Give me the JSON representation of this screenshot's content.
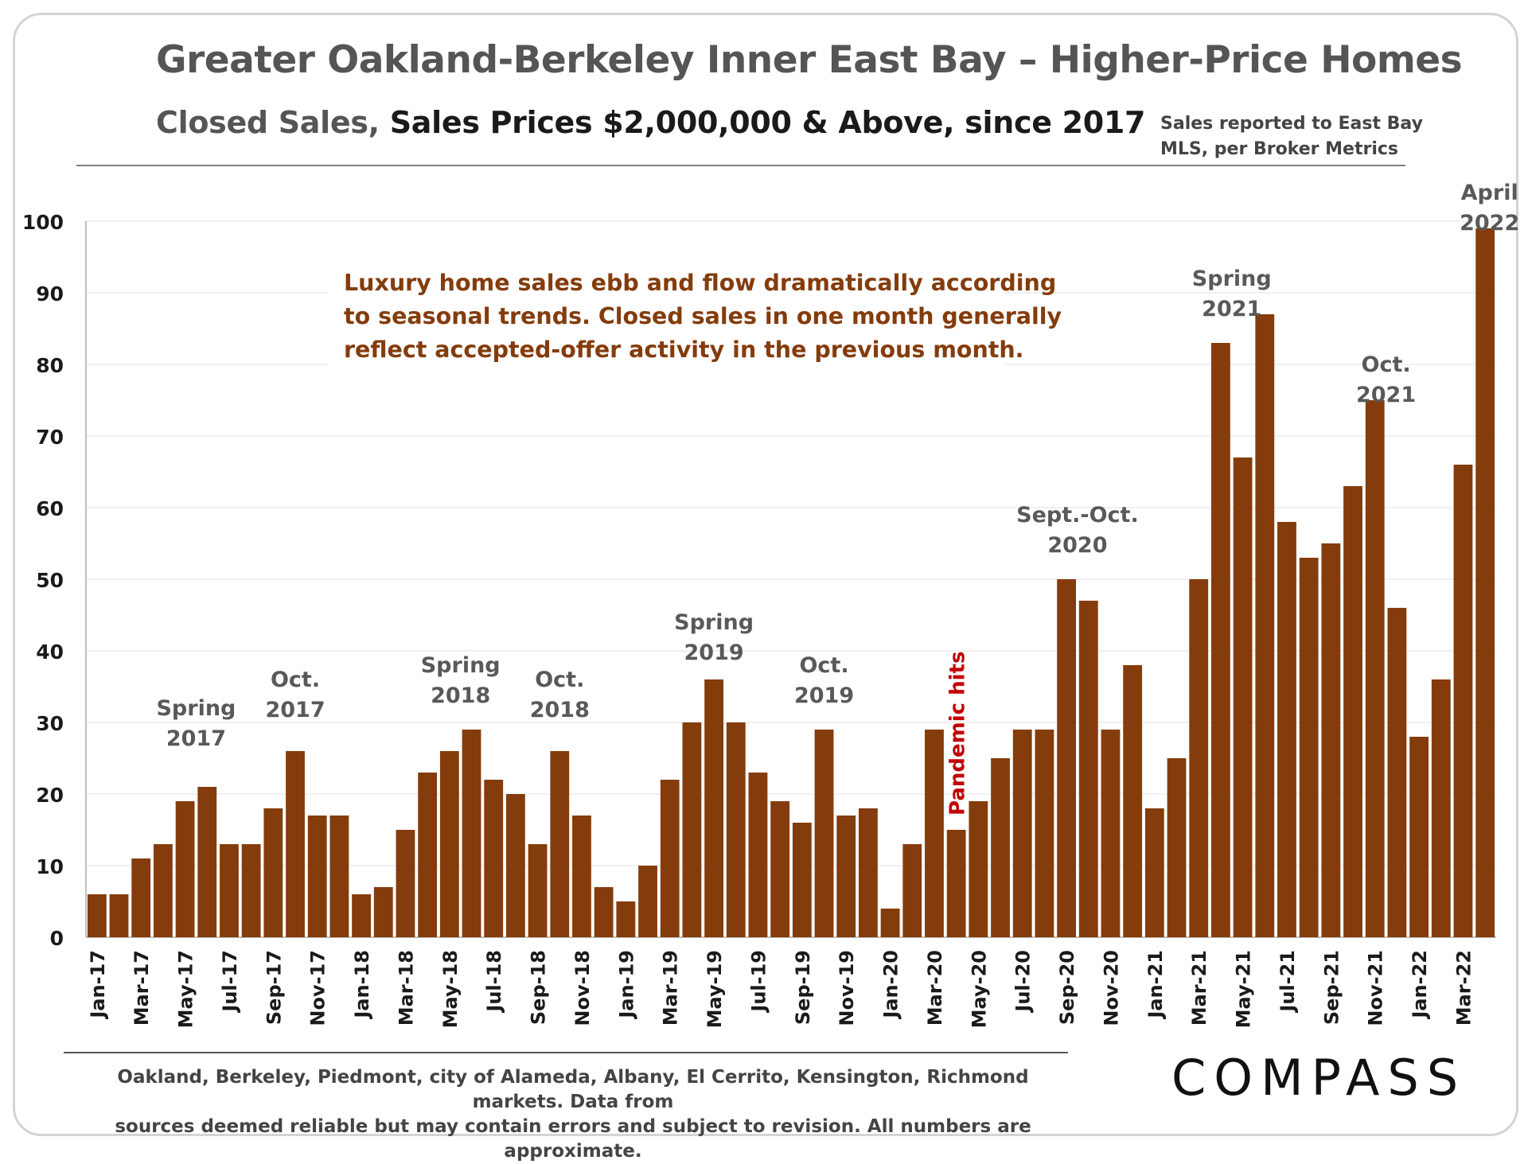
{
  "header": {
    "title": "Greater Oakland-Berkeley Inner East Bay – Higher-Price Homes",
    "subtitle_prefix": "Closed Sales,",
    "subtitle_rest": " Sales Prices $2,000,000 & Above, since 2017",
    "source_line1": "Sales reported to East Bay",
    "source_line2": "MLS, per Broker Metrics"
  },
  "footer": {
    "note_line1": "Oakland, Berkeley, Piedmont, city of Alameda, Albany, El Cerrito, Kensington, Richmond markets. Data from",
    "note_line2": "sources deemed reliable but may contain errors and subject to revision. All numbers are approximate.",
    "logo": "COMPASS"
  },
  "colors": {
    "bar": "#843C0C",
    "annotation": "#595959",
    "callout": "#843C0C",
    "pandemic": "#C00000",
    "grid": "#ececec"
  },
  "chart_data": {
    "type": "bar",
    "title": "Greater Oakland-Berkeley Inner East Bay – Higher-Price Homes",
    "ylim": [
      0,
      100
    ],
    "yticks": [
      0,
      10,
      20,
      30,
      40,
      50,
      60,
      70,
      80,
      90,
      100
    ],
    "grid": true,
    "categories": [
      "Jan-17",
      "Feb-17",
      "Mar-17",
      "Apr-17",
      "May-17",
      "Jun-17",
      "Jul-17",
      "Aug-17",
      "Sep-17",
      "Oct-17",
      "Nov-17",
      "Dec-17",
      "Jan-18",
      "Feb-18",
      "Mar-18",
      "Apr-18",
      "May-18",
      "Jun-18",
      "Jul-18",
      "Aug-18",
      "Sep-18",
      "Oct-18",
      "Nov-18",
      "Dec-18",
      "Jan-19",
      "Feb-19",
      "Mar-19",
      "Apr-19",
      "May-19",
      "Jun-19",
      "Jul-19",
      "Aug-19",
      "Sep-19",
      "Oct-19",
      "Nov-19",
      "Dec-19",
      "Jan-20",
      "Feb-20",
      "Mar-20",
      "Apr-20",
      "May-20",
      "Jun-20",
      "Jul-20",
      "Aug-20",
      "Sep-20",
      "Oct-20",
      "Nov-20",
      "Dec-20",
      "Jan-21",
      "Feb-21",
      "Mar-21",
      "Apr-21",
      "May-21",
      "Jun-21",
      "Jul-21",
      "Aug-21",
      "Sep-21",
      "Oct-21",
      "Nov-21",
      "Dec-21",
      "Jan-22",
      "Feb-22",
      "Mar-22",
      "Apr-22"
    ],
    "xtick_labels": [
      "Jan-17",
      "Mar-17",
      "May-17",
      "Jul-17",
      "Sep-17",
      "Nov-17",
      "Jan-18",
      "Mar-18",
      "May-18",
      "Jul-18",
      "Sep-18",
      "Nov-18",
      "Jan-19",
      "Mar-19",
      "May-19",
      "Jul-19",
      "Sep-19",
      "Nov-19",
      "Jan-20",
      "Mar-20",
      "May-20",
      "Jul-20",
      "Sep-20",
      "Nov-20",
      "Jan-21",
      "Mar-21",
      "May-21",
      "Jul-21",
      "Sep-21",
      "Nov-21",
      "Jan-22",
      "Mar-22"
    ],
    "values": [
      6,
      6,
      11,
      13,
      19,
      21,
      13,
      13,
      18,
      26,
      17,
      17,
      6,
      7,
      15,
      23,
      26,
      29,
      22,
      20,
      13,
      26,
      17,
      7,
      5,
      10,
      22,
      30,
      36,
      30,
      23,
      19,
      16,
      29,
      17,
      18,
      4,
      13,
      29,
      15,
      19,
      25,
      29,
      29,
      50,
      47,
      29,
      38,
      18,
      25,
      50,
      83,
      67,
      87,
      58,
      53,
      55,
      63,
      75,
      46,
      28,
      36,
      66,
      99
    ],
    "annotations": [
      {
        "index": 4.5,
        "lines": [
          "Spring",
          "2017"
        ],
        "value": 31
      },
      {
        "index": 9,
        "lines": [
          "Oct.",
          "2017"
        ],
        "value": 35
      },
      {
        "index": 16.5,
        "lines": [
          "Spring",
          "2018"
        ],
        "value": 37
      },
      {
        "index": 21,
        "lines": [
          "Oct.",
          "2018"
        ],
        "value": 35
      },
      {
        "index": 28,
        "lines": [
          "Spring",
          "2019"
        ],
        "value": 43
      },
      {
        "index": 33,
        "lines": [
          "Oct.",
          "2019"
        ],
        "value": 37
      },
      {
        "index": 44.5,
        "lines": [
          "Sept.-Oct.",
          "2020"
        ],
        "value": 58
      },
      {
        "index": 51.5,
        "lines": [
          "Spring",
          "2021"
        ],
        "value": 91
      },
      {
        "index": 58.5,
        "lines": [
          "Oct.",
          "2021"
        ],
        "value": 79
      },
      {
        "index": 63.2,
        "lines": [
          "April",
          "2022"
        ],
        "value": 103
      }
    ],
    "pandemic_label": "Pandemic hits",
    "callout_lines": [
      "Luxury home sales ebb and flow dramatically according",
      "to seasonal trends. Closed sales in one month generally",
      "reflect accepted-offer activity in the previous month."
    ]
  }
}
